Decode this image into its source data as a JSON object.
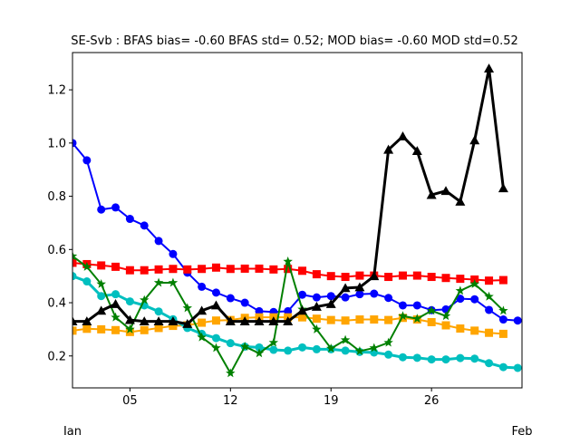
{
  "chart_data": {
    "type": "line",
    "title": "SE-Svb   : BFAS bias= -0.60 BFAS std= 0.52; MOD bias= -0.60 MOD std=0.52",
    "xlabel": "",
    "ylabel": "",
    "xlim": [
      1,
      32.3
    ],
    "ylim": [
      0.08,
      1.34
    ],
    "x_ticks": [
      {
        "x": 5,
        "label": "05"
      },
      {
        "x": 12,
        "label": "12"
      },
      {
        "x": 19,
        "label": "19"
      },
      {
        "x": 26,
        "label": "26"
      }
    ],
    "x_sublabels": {
      "left": "Jan",
      "right": "Feb"
    },
    "y_ticks": [
      {
        "y": 0.2,
        "label": "0.2"
      },
      {
        "y": 0.4,
        "label": "0.4"
      },
      {
        "y": 0.6,
        "label": "0.6"
      },
      {
        "y": 0.8,
        "label": "0.8"
      },
      {
        "y": 1.0,
        "label": "1.0"
      },
      {
        "y": 1.2,
        "label": "1.2"
      }
    ],
    "grid": false,
    "legend": "none",
    "series": [
      {
        "color": "#0000ff",
        "marker": "circle",
        "linewidth": 2,
        "x": [
          1,
          2,
          3,
          4,
          5,
          6,
          7,
          8,
          9,
          10,
          11,
          12,
          13,
          14,
          15,
          16,
          17,
          18,
          19,
          20,
          21,
          22,
          23,
          24,
          25,
          26,
          27,
          28,
          29,
          30,
          31,
          32
        ],
        "values": [
          1.0,
          0.935,
          0.75,
          0.758,
          0.715,
          0.69,
          0.632,
          0.583,
          0.513,
          0.46,
          0.438,
          0.417,
          0.4,
          0.368,
          0.365,
          0.368,
          0.43,
          0.42,
          0.425,
          0.42,
          0.432,
          0.434,
          0.418,
          0.39,
          0.39,
          0.372,
          0.375,
          0.415,
          0.413,
          0.373,
          0.337,
          0.333
        ]
      },
      {
        "color": "#ff0000",
        "marker": "square",
        "linewidth": 2,
        "x": [
          1,
          2,
          3,
          4,
          5,
          6,
          7,
          8,
          9,
          10,
          11,
          12,
          13,
          14,
          15,
          16,
          17,
          18,
          19,
          20,
          21,
          22,
          23,
          24,
          25,
          26,
          27,
          28,
          29,
          30,
          31
        ],
        "values": [
          0.55,
          0.545,
          0.54,
          0.535,
          0.522,
          0.522,
          0.525,
          0.527,
          0.525,
          0.527,
          0.532,
          0.527,
          0.528,
          0.528,
          0.525,
          0.527,
          0.52,
          0.507,
          0.5,
          0.497,
          0.502,
          0.502,
          0.497,
          0.502,
          0.502,
          0.497,
          0.493,
          0.49,
          0.487,
          0.483,
          0.485
        ]
      },
      {
        "color": "#ffa500",
        "marker": "square",
        "linewidth": 2,
        "x": [
          1,
          2,
          3,
          4,
          5,
          6,
          7,
          8,
          9,
          10,
          11,
          12,
          13,
          14,
          15,
          16,
          17,
          18,
          19,
          20,
          21,
          22,
          23,
          24,
          25,
          26,
          27,
          28,
          29,
          30,
          31
        ],
        "values": [
          0.295,
          0.302,
          0.3,
          0.297,
          0.29,
          0.297,
          0.305,
          0.313,
          0.315,
          0.325,
          0.333,
          0.335,
          0.343,
          0.345,
          0.345,
          0.345,
          0.345,
          0.34,
          0.335,
          0.333,
          0.337,
          0.337,
          0.335,
          0.343,
          0.337,
          0.327,
          0.315,
          0.303,
          0.295,
          0.287,
          0.283
        ]
      },
      {
        "color": "#00bfbf",
        "marker": "circle",
        "linewidth": 3,
        "x": [
          1,
          2,
          3,
          4,
          5,
          6,
          7,
          8,
          9,
          10,
          11,
          12,
          13,
          14,
          15,
          16,
          17,
          18,
          19,
          20,
          21,
          22,
          23,
          24,
          25,
          26,
          27,
          28,
          29,
          30,
          31,
          32
        ],
        "values": [
          0.5,
          0.48,
          0.425,
          0.432,
          0.405,
          0.39,
          0.367,
          0.338,
          0.305,
          0.283,
          0.267,
          0.248,
          0.235,
          0.232,
          0.223,
          0.22,
          0.232,
          0.225,
          0.225,
          0.22,
          0.215,
          0.213,
          0.205,
          0.195,
          0.193,
          0.187,
          0.187,
          0.192,
          0.19,
          0.173,
          0.158,
          0.155
        ]
      },
      {
        "color": "#008000",
        "marker": "star",
        "linewidth": 2,
        "x": [
          1,
          2,
          3,
          4,
          5,
          6,
          7,
          8,
          9,
          10,
          11,
          12,
          13,
          14,
          15,
          16,
          17,
          18,
          19,
          20,
          21,
          22,
          23,
          24,
          25,
          26,
          27,
          28,
          29,
          30,
          31
        ],
        "values": [
          0.575,
          0.535,
          0.47,
          0.345,
          0.3,
          0.41,
          0.475,
          0.475,
          0.38,
          0.27,
          0.23,
          0.135,
          0.235,
          0.21,
          0.25,
          0.555,
          0.375,
          0.3,
          0.228,
          0.26,
          0.218,
          0.23,
          0.25,
          0.35,
          0.34,
          0.37,
          0.35,
          0.445,
          0.47,
          0.423,
          0.37
        ]
      },
      {
        "color": "#000000",
        "marker": "triangle",
        "linewidth": 3,
        "x": [
          1,
          2,
          3,
          4,
          5,
          6,
          7,
          8,
          9,
          10,
          11,
          12,
          13,
          14,
          15,
          16,
          17,
          18,
          19,
          20,
          21,
          22,
          23,
          24,
          25,
          26,
          27,
          28,
          29,
          30,
          31
        ],
        "values": [
          0.33,
          0.33,
          0.37,
          0.395,
          0.335,
          0.33,
          0.33,
          0.33,
          0.32,
          0.37,
          0.39,
          0.33,
          0.33,
          0.33,
          0.33,
          0.33,
          0.37,
          0.385,
          0.395,
          0.455,
          0.458,
          0.5,
          0.975,
          1.025,
          0.97,
          0.805,
          0.82,
          0.78,
          1.01,
          1.28,
          0.83
        ]
      }
    ]
  }
}
